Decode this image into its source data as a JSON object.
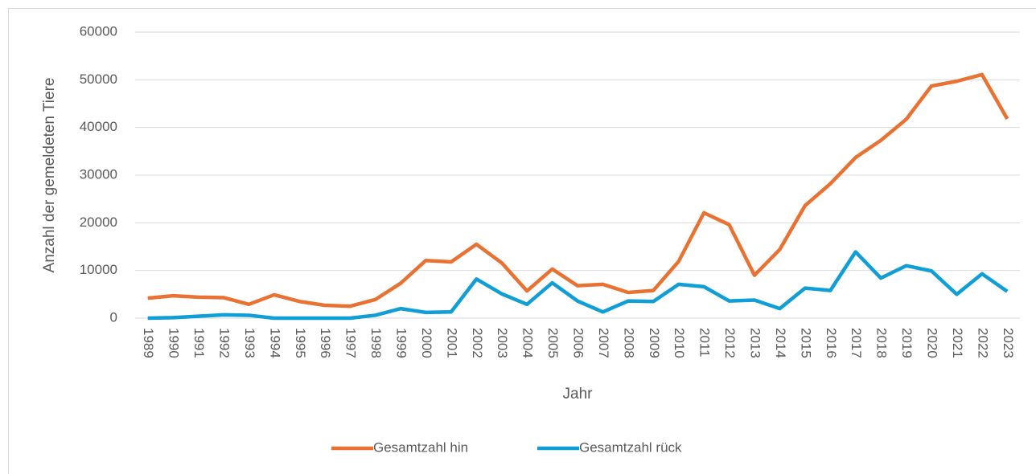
{
  "chart_data": {
    "type": "line",
    "y_axis_label": "Anzahl der gemeldeten Tiere",
    "x_axis_label": "Jahr",
    "categories": [
      "1989",
      "1990",
      "1991",
      "1992",
      "1993",
      "1994",
      "1995",
      "1996",
      "1997",
      "1998",
      "1999",
      "2000",
      "2001",
      "2002",
      "2003",
      "2004",
      "2005",
      "2006",
      "2007",
      "2008",
      "2009",
      "2010",
      "2011",
      "2012",
      "2013",
      "2014",
      "2015",
      "2016",
      "2017",
      "2018",
      "2019",
      "2020",
      "2021",
      "2022",
      "2023"
    ],
    "series": [
      {
        "name": "Gesamtzahl hin",
        "color": "#e97132",
        "values": [
          4200,
          4700,
          4400,
          4300,
          2900,
          4900,
          3500,
          2700,
          2500,
          3900,
          7300,
          12100,
          11800,
          15500,
          11600,
          5700,
          10300,
          6800,
          7100,
          5400,
          5800,
          11900,
          22100,
          19600,
          9000,
          14400,
          23600,
          28200,
          33700,
          37300,
          41700,
          48700,
          49700,
          51100,
          41800
        ]
      },
      {
        "name": "Gesamtzahl rück",
        "color": "#0f9ed5",
        "values": [
          0,
          100,
          400,
          700,
          600,
          0,
          0,
          0,
          0,
          600,
          2000,
          1200,
          1300,
          8200,
          5100,
          2900,
          7400,
          3600,
          1300,
          3600,
          3500,
          7100,
          6600,
          3600,
          3800,
          2000,
          6300,
          5800,
          13900,
          8400,
          11000,
          9900,
          5000,
          9300,
          5600
        ]
      }
    ],
    "ylim": [
      0,
      60000
    ],
    "yticks": [
      0,
      10000,
      20000,
      30000,
      40000,
      50000,
      60000
    ],
    "grid": true,
    "legend": "bottom"
  }
}
